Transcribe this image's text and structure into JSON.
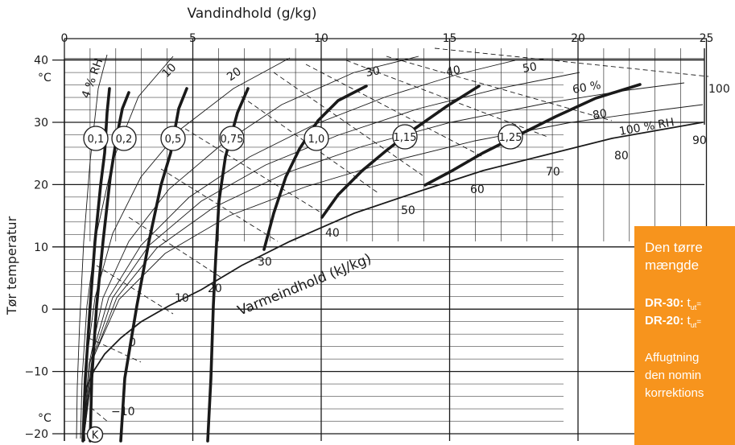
{
  "title": "Vandindhold (g/kg)",
  "y_axis_label": "Tør temperatur",
  "y_unit_top": "°C",
  "y_unit_bottom": "°C",
  "enthalpy_axis_label": "Varmeindhold (kJ/kg)",
  "k_label": "K",
  "x_ticks": [
    "0",
    "5",
    "10",
    "15",
    "20",
    "25"
  ],
  "y_ticks": [
    "40",
    "30",
    "20",
    "10",
    "0",
    "−10",
    "−20"
  ],
  "rh_labels": [
    "4 % RH",
    "10",
    "20",
    "30",
    "40",
    "50",
    "60 %",
    "80",
    "100 % RH"
  ],
  "enthalpy_labels": [
    "−10",
    "0",
    "10",
    "20",
    "30",
    "40",
    "50",
    "60",
    "70",
    "80",
    "90",
    "100"
  ],
  "drying_factors": [
    "0,1",
    "0,2",
    "0,5",
    "0,75",
    "1,0",
    "1,15",
    "1,25"
  ],
  "side_box": {
    "line1": "Den tørre",
    "line2": "mængde",
    "dr30_label": "DR-30:",
    "dr30_value": "t",
    "dr30_sub": "ut",
    "dr30_rest": "=",
    "dr20_label": "DR-20:",
    "dr20_value": "t",
    "dr20_sub": "ut",
    "dr20_rest": "=",
    "line5": "Affugtning",
    "line6": "den nomin",
    "line7": "korrektions"
  },
  "colors": {
    "ink": "#1a1a1a",
    "box": "#f7941d"
  }
}
